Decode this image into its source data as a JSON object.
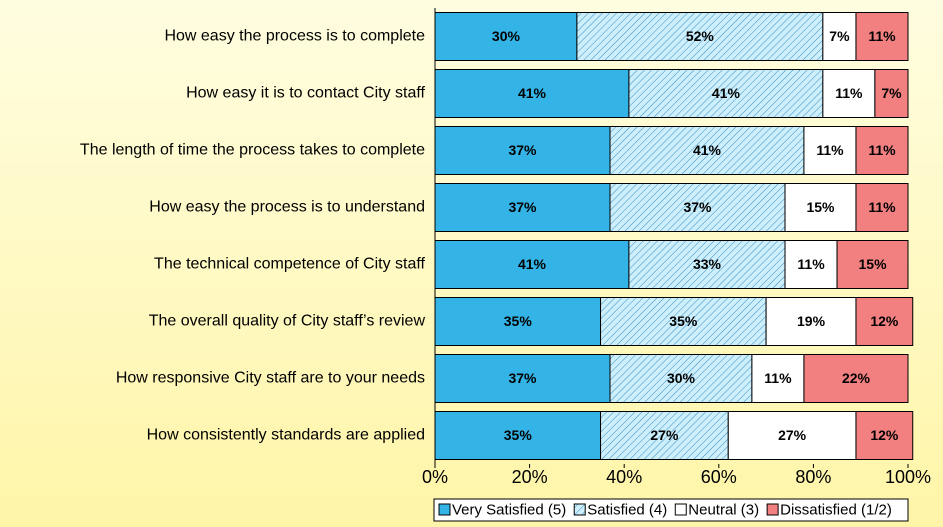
{
  "chart_data": {
    "type": "stacked_bar_horizontal",
    "categories": [
      "How easy the process is to complete",
      "How easy it is to contact City staff",
      "The length of time the process takes to complete",
      "How easy the process is to understand",
      "The technical competence of City staff",
      "The overall quality of City staff’s review",
      "How responsive City staff are to your needs",
      "How consistently standards are applied"
    ],
    "series": [
      {
        "name": "Very Satisfied (5)",
        "color": "#33b3e6",
        "values": [
          30,
          41,
          37,
          37,
          41,
          35,
          37,
          35
        ],
        "value_labels": [
          "30%",
          "41%",
          "37%",
          "37%",
          "41%",
          "35%",
          "37%",
          "35%"
        ]
      },
      {
        "name": "Satisfied (4)",
        "color": "#bfe6f7",
        "hatch": true,
        "values": [
          52,
          41,
          41,
          37,
          33,
          35,
          30,
          27
        ],
        "value_labels": [
          "52%",
          "41%",
          "41%",
          "37%",
          "33%",
          "35%",
          "30%",
          "27%"
        ]
      },
      {
        "name": "Neutral (3)",
        "color": "#ffffff",
        "values": [
          7,
          11,
          11,
          15,
          11,
          19,
          11,
          27
        ],
        "value_labels": [
          "7%",
          "11%",
          "11%",
          "15%",
          "11%",
          "19%",
          "11%",
          "27%"
        ]
      },
      {
        "name": "Dissatisfied (1/2)",
        "color": "#f28080",
        "values": [
          11,
          7,
          11,
          11,
          15,
          12,
          22,
          12
        ],
        "value_labels": [
          "11%",
          "7%",
          "11%",
          "11%",
          "15%",
          "12%",
          "22%",
          "12%"
        ]
      }
    ],
    "xlim": [
      0,
      100
    ],
    "xticks": [
      {
        "value": 0,
        "label": "0%"
      },
      {
        "value": 20,
        "label": "20%"
      },
      {
        "value": 40,
        "label": "40%"
      },
      {
        "value": 60,
        "label": "60%"
      },
      {
        "value": 80,
        "label": "80%"
      },
      {
        "value": 100,
        "label": "100%"
      }
    ],
    "legend": "bottom"
  }
}
